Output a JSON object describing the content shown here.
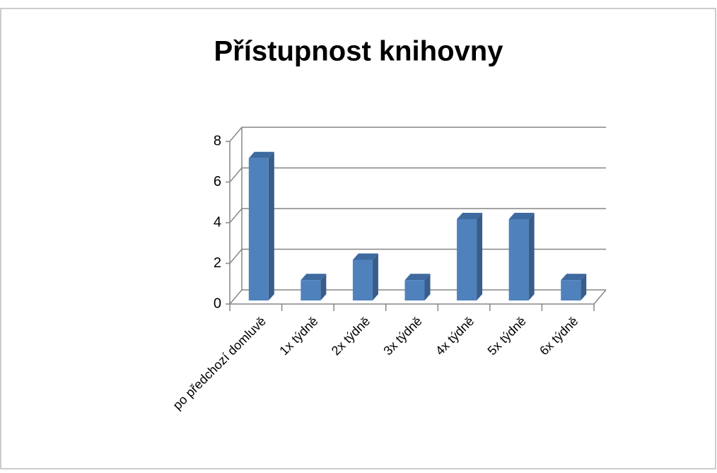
{
  "chart_data": {
    "type": "bar3d",
    "title": "Přístupnost knihovny",
    "categories": [
      "po předchozí domluvě",
      "1x týdně",
      "2x týdně",
      "3x týdně",
      "4x týdně",
      "5x týdně",
      "6x týdně"
    ],
    "values": [
      7,
      1,
      2,
      1,
      4,
      4,
      1
    ],
    "color": "#4f81bd",
    "ylim": [
      0,
      8
    ],
    "yticks": [
      0,
      2,
      4,
      6,
      8
    ],
    "grid": true
  }
}
